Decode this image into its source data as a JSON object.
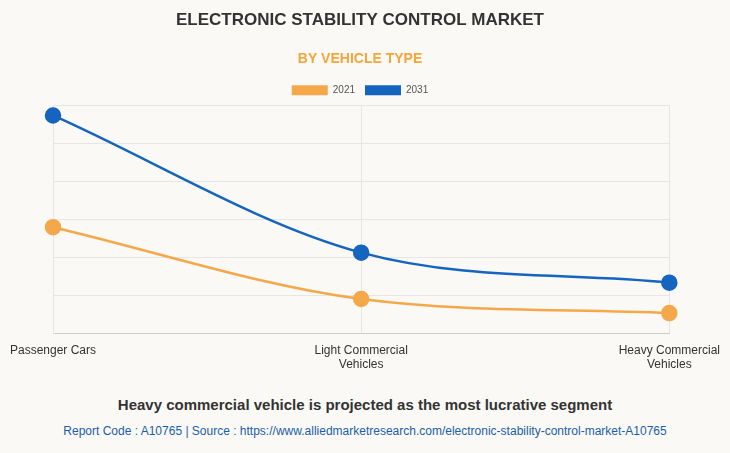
{
  "chart_data": {
    "type": "line",
    "title": "ELECTRONIC STABILITY CONTROL MARKET",
    "subtitle": "BY VEHICLE TYPE",
    "categories": [
      [
        "Passenger Cars"
      ],
      [
        "Light Commercial",
        "Vehicles"
      ],
      [
        "Heavy Commercial",
        "Vehicles"
      ]
    ],
    "series": [
      {
        "name": "2021",
        "color": "#f4a84a",
        "values": [
          2.79,
          0.9,
          0.53
        ],
        "marker": "circle"
      },
      {
        "name": "2031",
        "color": "#1565c0",
        "values": [
          5.73,
          2.12,
          1.33
        ],
        "marker": "circle"
      }
    ],
    "ylim": [
      0,
      6
    ],
    "yticks": [
      0,
      1,
      2,
      3,
      4,
      5,
      6
    ],
    "grid": true,
    "legend": "top",
    "tick_labels": "x",
    "caption": "Heavy commercial vehicle is projected as the most lucrative segment",
    "source": "Report Code : A10765  |  Source : https://www.alliedmarketresearch.com/electronic-stability-control-market-A10765"
  }
}
